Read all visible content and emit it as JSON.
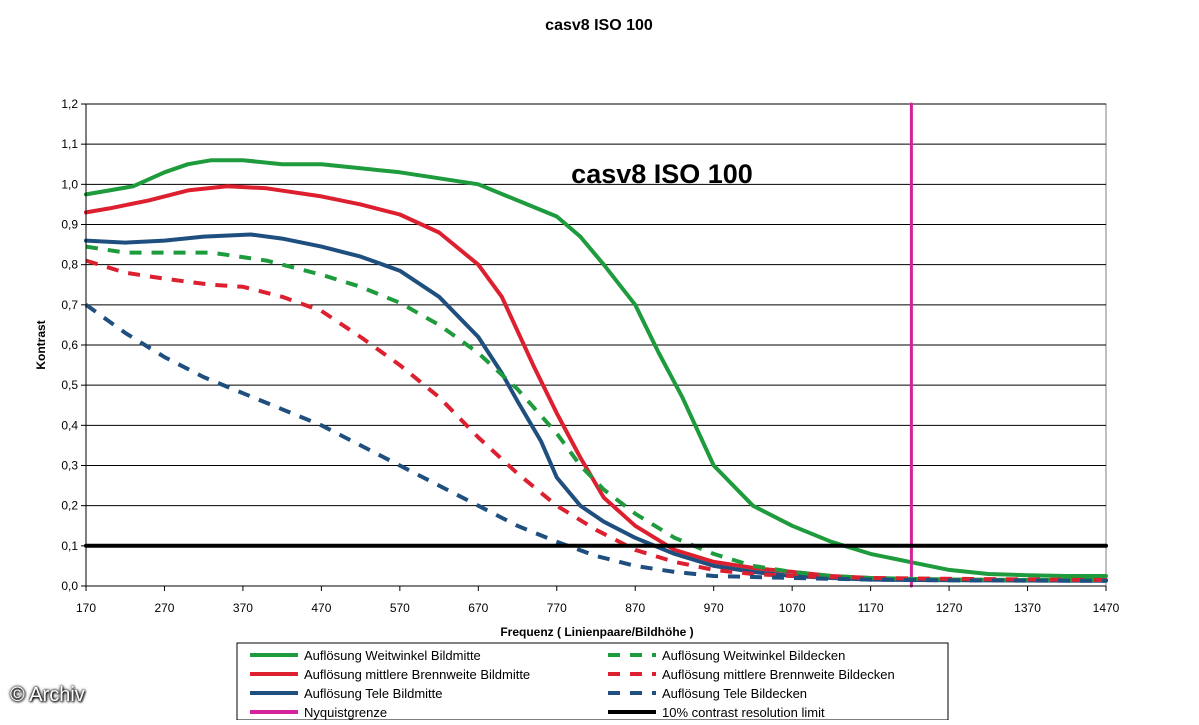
{
  "chart_data": {
    "type": "line",
    "title": "casv8 ISO 100",
    "inner_title": "casv8 ISO 100",
    "xlabel": "Frequenz ( Linienpaare/Bildhöhe )",
    "ylabel": "Kontrast",
    "xlim": [
      170,
      1470
    ],
    "ylim": [
      0,
      1.2
    ],
    "xticks": [
      "170",
      "270",
      "370",
      "470",
      "570",
      "670",
      "770",
      "870",
      "970",
      "1070",
      "1170",
      "1270",
      "1370",
      "1470"
    ],
    "yticks": [
      "0,0",
      "0,1",
      "0,2",
      "0,3",
      "0,4",
      "0,5",
      "0,6",
      "0,7",
      "0,8",
      "0,9",
      "1,0",
      "1,1",
      "1,2"
    ],
    "grid": "horizontal",
    "legend_position": "bottom",
    "series": [
      {
        "name": "Auflösung Weitwinkel Bildmitte",
        "color": "#1e9b3c",
        "dash": "solid",
        "points": [
          [
            170,
            0.975
          ],
          [
            200,
            0.985
          ],
          [
            230,
            0.995
          ],
          [
            270,
            1.03
          ],
          [
            300,
            1.05
          ],
          [
            330,
            1.06
          ],
          [
            370,
            1.06
          ],
          [
            420,
            1.05
          ],
          [
            470,
            1.05
          ],
          [
            520,
            1.04
          ],
          [
            570,
            1.03
          ],
          [
            620,
            1.015
          ],
          [
            670,
            1.0
          ],
          [
            720,
            0.96
          ],
          [
            770,
            0.92
          ],
          [
            800,
            0.87
          ],
          [
            830,
            0.8
          ],
          [
            870,
            0.7
          ],
          [
            900,
            0.58
          ],
          [
            930,
            0.47
          ],
          [
            970,
            0.3
          ],
          [
            1020,
            0.2
          ],
          [
            1070,
            0.15
          ],
          [
            1120,
            0.11
          ],
          [
            1170,
            0.08
          ],
          [
            1220,
            0.06
          ],
          [
            1270,
            0.04
          ],
          [
            1320,
            0.03
          ],
          [
            1370,
            0.027
          ],
          [
            1420,
            0.025
          ],
          [
            1470,
            0.025
          ]
        ]
      },
      {
        "name": "Auflösung mittlere Brennweite Bildmitte",
        "color": "#dd2030",
        "dash": "solid",
        "points": [
          [
            170,
            0.93
          ],
          [
            200,
            0.94
          ],
          [
            250,
            0.96
          ],
          [
            300,
            0.985
          ],
          [
            350,
            0.995
          ],
          [
            400,
            0.99
          ],
          [
            470,
            0.97
          ],
          [
            520,
            0.95
          ],
          [
            570,
            0.925
          ],
          [
            620,
            0.88
          ],
          [
            670,
            0.8
          ],
          [
            700,
            0.72
          ],
          [
            740,
            0.55
          ],
          [
            770,
            0.43
          ],
          [
            800,
            0.32
          ],
          [
            830,
            0.22
          ],
          [
            870,
            0.15
          ],
          [
            920,
            0.09
          ],
          [
            970,
            0.06
          ],
          [
            1020,
            0.045
          ],
          [
            1070,
            0.035
          ],
          [
            1120,
            0.025
          ],
          [
            1170,
            0.02
          ],
          [
            1220,
            0.017
          ],
          [
            1270,
            0.016
          ],
          [
            1370,
            0.015
          ],
          [
            1470,
            0.015
          ]
        ]
      },
      {
        "name": "Auflösung Tele Bildmitte",
        "color": "#1f4f7f",
        "dash": "solid",
        "points": [
          [
            170,
            0.86
          ],
          [
            220,
            0.855
          ],
          [
            270,
            0.86
          ],
          [
            320,
            0.87
          ],
          [
            380,
            0.875
          ],
          [
            420,
            0.865
          ],
          [
            470,
            0.845
          ],
          [
            520,
            0.82
          ],
          [
            570,
            0.785
          ],
          [
            620,
            0.72
          ],
          [
            670,
            0.62
          ],
          [
            700,
            0.53
          ],
          [
            720,
            0.46
          ],
          [
            750,
            0.36
          ],
          [
            770,
            0.27
          ],
          [
            800,
            0.2
          ],
          [
            830,
            0.16
          ],
          [
            870,
            0.12
          ],
          [
            920,
            0.08
          ],
          [
            970,
            0.05
          ],
          [
            1020,
            0.035
          ],
          [
            1070,
            0.025
          ],
          [
            1120,
            0.02
          ],
          [
            1170,
            0.016
          ],
          [
            1220,
            0.015
          ],
          [
            1320,
            0.014
          ],
          [
            1470,
            0.013
          ]
        ]
      },
      {
        "name": "Nyquistgrenze",
        "color": "#d4229a",
        "dash": "solid",
        "points": [
          [
            1222,
            0
          ],
          [
            1222,
            1.2
          ]
        ]
      },
      {
        "name": "Auflösung Weitwinkel Bildecken",
        "color": "#1e9b3c",
        "dash": "dashed",
        "points": [
          [
            170,
            0.845
          ],
          [
            220,
            0.83
          ],
          [
            270,
            0.83
          ],
          [
            330,
            0.83
          ],
          [
            400,
            0.81
          ],
          [
            470,
            0.775
          ],
          [
            520,
            0.745
          ],
          [
            570,
            0.705
          ],
          [
            620,
            0.65
          ],
          [
            670,
            0.58
          ],
          [
            720,
            0.49
          ],
          [
            770,
            0.38
          ],
          [
            800,
            0.3
          ],
          [
            830,
            0.24
          ],
          [
            870,
            0.18
          ],
          [
            920,
            0.12
          ],
          [
            970,
            0.08
          ],
          [
            1020,
            0.05
          ],
          [
            1070,
            0.035
          ],
          [
            1120,
            0.025
          ],
          [
            1170,
            0.02
          ],
          [
            1270,
            0.016
          ],
          [
            1370,
            0.015
          ],
          [
            1470,
            0.015
          ]
        ]
      },
      {
        "name": "Auflösung mittlere Brennweite Bildecken",
        "color": "#dd2030",
        "dash": "dashed",
        "points": [
          [
            170,
            0.81
          ],
          [
            220,
            0.78
          ],
          [
            270,
            0.765
          ],
          [
            330,
            0.75
          ],
          [
            370,
            0.745
          ],
          [
            420,
            0.72
          ],
          [
            470,
            0.685
          ],
          [
            520,
            0.62
          ],
          [
            570,
            0.55
          ],
          [
            620,
            0.47
          ],
          [
            670,
            0.37
          ],
          [
            720,
            0.28
          ],
          [
            770,
            0.2
          ],
          [
            820,
            0.14
          ],
          [
            870,
            0.09
          ],
          [
            920,
            0.06
          ],
          [
            970,
            0.04
          ],
          [
            1020,
            0.03
          ],
          [
            1070,
            0.025
          ],
          [
            1170,
            0.02
          ],
          [
            1270,
            0.018
          ],
          [
            1470,
            0.015
          ]
        ]
      },
      {
        "name": "Auflösung Tele Bildecken",
        "color": "#1f4f7f",
        "dash": "dashed",
        "points": [
          [
            170,
            0.7
          ],
          [
            220,
            0.63
          ],
          [
            270,
            0.57
          ],
          [
            320,
            0.52
          ],
          [
            370,
            0.48
          ],
          [
            420,
            0.44
          ],
          [
            470,
            0.4
          ],
          [
            520,
            0.35
          ],
          [
            570,
            0.3
          ],
          [
            620,
            0.25
          ],
          [
            670,
            0.2
          ],
          [
            720,
            0.15
          ],
          [
            770,
            0.11
          ],
          [
            820,
            0.075
          ],
          [
            870,
            0.05
          ],
          [
            920,
            0.035
          ],
          [
            970,
            0.025
          ],
          [
            1070,
            0.02
          ],
          [
            1170,
            0.016
          ],
          [
            1270,
            0.014
          ],
          [
            1470,
            0.013
          ]
        ]
      },
      {
        "name": "10% contrast resolution limit",
        "color": "#000000",
        "dash": "solid",
        "points": [
          [
            170,
            0.1
          ],
          [
            1470,
            0.1
          ]
        ]
      }
    ]
  },
  "watermark": "© Archiv"
}
